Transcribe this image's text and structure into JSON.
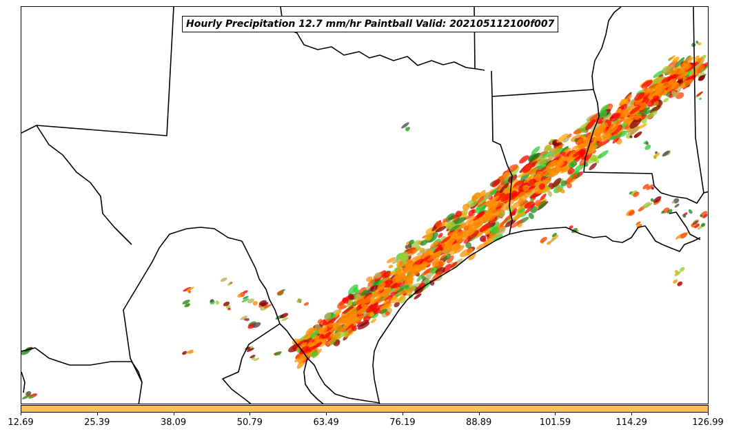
{
  "title": "Hourly Precipitation 12.7 mm/hr Paintball Valid: 202105112100f007",
  "colorbar": {
    "color": "#ffc05c",
    "tick_labels": [
      "12.69",
      "25.39",
      "38.09",
      "50.79",
      "63.49",
      "76.19",
      "88.89",
      "101.59",
      "114.29",
      "126.99"
    ]
  },
  "paintball_colors": [
    "#ff8c00",
    "#ff0000",
    "#8b0000",
    "#228b22",
    "#32cd32",
    "#9acd32",
    "#ffa500",
    "#ff4500",
    "#b5b35c",
    "#4d4d4d"
  ],
  "map": {
    "projection": "Lambert conformal",
    "region": "Texas / Louisiana / Gulf coast",
    "border_color": "#000000"
  }
}
